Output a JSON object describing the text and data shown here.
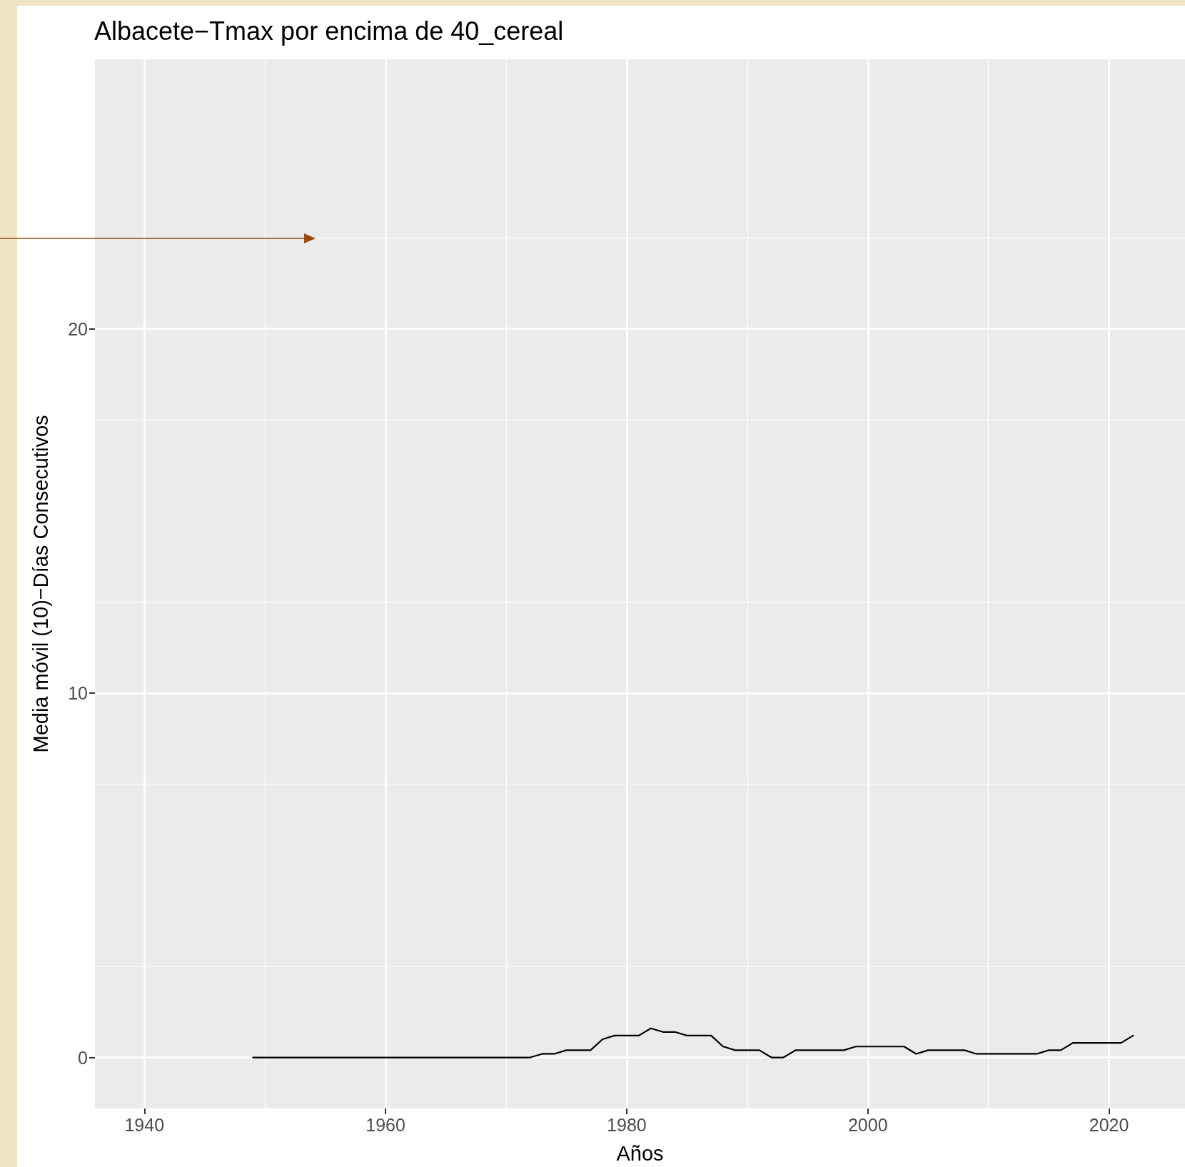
{
  "chart_data": {
    "type": "line",
    "title": "Albacete−Tmax por encima de 40_cereal",
    "xlabel": "Años",
    "ylabel": "Media móvil (10)−Días Consecutivos",
    "x": [
      1949,
      1972,
      1973,
      1974,
      1975,
      1977,
      1978,
      1979,
      1981,
      1982,
      1983,
      1984,
      1985,
      1987,
      1988,
      1989,
      1991,
      1992,
      1993,
      1994,
      1998,
      1999,
      2003,
      2004,
      2005,
      2008,
      2009,
      2014,
      2015,
      2016,
      2017,
      2021,
      2022
    ],
    "series": [
      {
        "color": "#000000",
        "values": [
          0,
          0,
          0.1,
          0.1,
          0.2,
          0.2,
          0.5,
          0.6,
          0.6,
          0.8,
          0.7,
          0.7,
          0.6,
          0.6,
          0.3,
          0.2,
          0.2,
          0,
          0,
          0.2,
          0.2,
          0.3,
          0.3,
          0.1,
          0.2,
          0.2,
          0.1,
          0.1,
          0.2,
          0.2,
          0.4,
          0.4,
          0.6
        ]
      }
    ],
    "xlim": [
      1935.9,
      2026.3
    ],
    "ylim": [
      -1.4,
      27.4
    ],
    "xticks": [
      1940,
      1960,
      1980,
      2000,
      2020
    ],
    "yticks": [
      0,
      10,
      20
    ],
    "grid": true,
    "marker": "none",
    "line_style": "solid"
  }
}
